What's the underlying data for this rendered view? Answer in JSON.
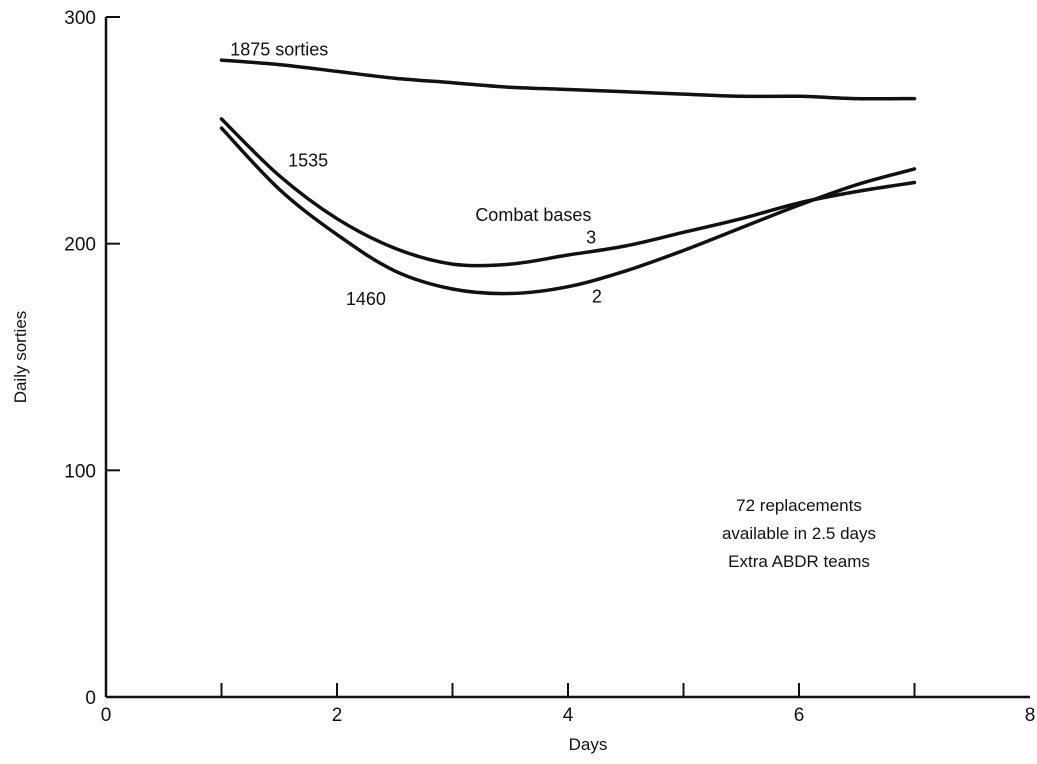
{
  "chart_data": {
    "type": "line",
    "title": "",
    "xlabel": "Days",
    "ylabel": "Daily sorties",
    "xlim": [
      0,
      8
    ],
    "ylim": [
      0,
      300
    ],
    "x_ticks": [
      0,
      2,
      4,
      6,
      8
    ],
    "x_minor_ticks": [
      1,
      2,
      3,
      4,
      5,
      6,
      7
    ],
    "y_ticks": [
      0,
      100,
      200,
      300
    ],
    "grid": false,
    "series": [
      {
        "x": [
          1.0,
          1.5,
          2.0,
          2.5,
          3.0,
          3.5,
          4.0,
          4.5,
          5.0,
          5.5,
          6.0,
          6.5,
          7.0
        ],
        "y": [
          281,
          279,
          276,
          273,
          271,
          269,
          268,
          267,
          266,
          265,
          265,
          264,
          264
        ]
      },
      {
        "x": [
          1.0,
          1.5,
          2.0,
          2.5,
          3.0,
          3.5,
          4.0,
          4.5,
          5.0,
          5.5,
          6.0,
          6.5,
          7.0
        ],
        "y": [
          255,
          230,
          211,
          198,
          191,
          191,
          195,
          199,
          205,
          211,
          218,
          223,
          227
        ]
      },
      {
        "x": [
          1.0,
          1.5,
          2.0,
          2.5,
          3.0,
          3.5,
          4.0,
          4.5,
          5.0,
          5.5,
          6.0,
          6.5,
          7.0
        ],
        "y": [
          251,
          224,
          204,
          188,
          180,
          178,
          181,
          188,
          197,
          207,
          217,
          226,
          233
        ]
      }
    ],
    "annotations": [
      {
        "text": "1875 sorties",
        "x": 1.5,
        "y": 283
      },
      {
        "text": "1535",
        "x": 1.75,
        "y": 234
      },
      {
        "text": "Combat bases",
        "x": 3.7,
        "y": 210
      },
      {
        "text": "3",
        "x": 4.2,
        "y": 200
      },
      {
        "text": "1460",
        "x": 2.25,
        "y": 173
      },
      {
        "text": "2",
        "x": 4.25,
        "y": 174
      }
    ],
    "note_lines": [
      "72 replacements",
      "available in 2.5 days",
      "Extra ABDR teams"
    ],
    "note_anchor": {
      "x": 6.0,
      "y": 82
    }
  }
}
